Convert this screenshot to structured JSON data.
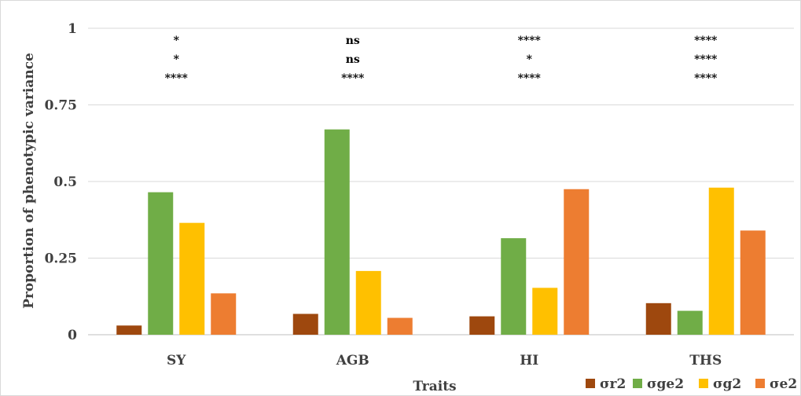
{
  "chart_data": {
    "type": "bar",
    "title": "",
    "xlabel": "Traits",
    "ylabel": "Proportion of phenotypic variance",
    "ylim": [
      0,
      1
    ],
    "yticks": [
      0,
      0.25,
      0.5,
      0.75,
      1
    ],
    "ytick_labels": [
      "0",
      "0.25",
      "0.5",
      "0.75",
      "1"
    ],
    "grid": true,
    "legend_position": "bottom-right",
    "categories": [
      "SY",
      "AGB",
      "HI",
      "THS"
    ],
    "series": [
      {
        "name": "σr2",
        "color": "#9E480E",
        "values": [
          0.03,
          0.068,
          0.06,
          0.103
        ]
      },
      {
        "name": "σge2",
        "color": "#70AD47",
        "values": [
          0.465,
          0.67,
          0.315,
          0.078
        ]
      },
      {
        "name": "σg2",
        "color": "#FFC000",
        "values": [
          0.365,
          0.208,
          0.153,
          0.48
        ]
      },
      {
        "name": "σe2",
        "color": "#ED7D31",
        "values": [
          0.135,
          0.055,
          0.475,
          0.34
        ]
      }
    ],
    "significance": [
      [
        "*",
        "*",
        "****"
      ],
      [
        "ns",
        "ns",
        "****"
      ],
      [
        "****",
        "*",
        "****"
      ],
      [
        "****",
        "****",
        "****"
      ]
    ]
  }
}
